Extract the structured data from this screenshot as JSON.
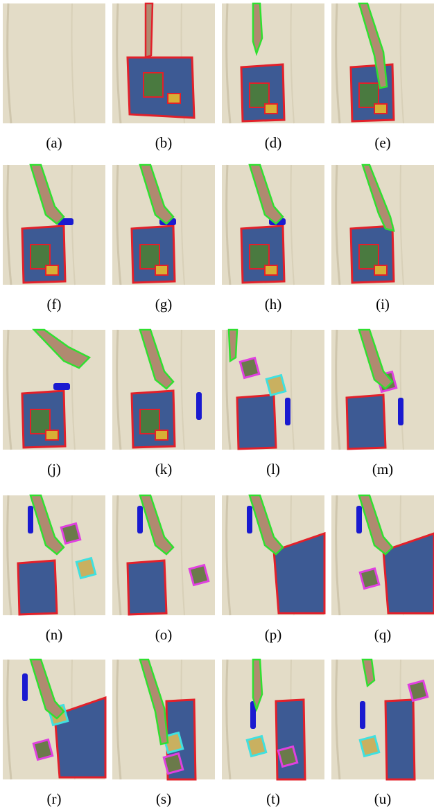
{
  "panels": [
    {
      "label": "(a)"
    },
    {
      "label": "(b)"
    },
    {
      "label": "(d)"
    },
    {
      "label": "(e)"
    },
    {
      "label": "(f)"
    },
    {
      "label": "(g)"
    },
    {
      "label": "(h)"
    },
    {
      "label": "(i)"
    },
    {
      "label": "(j)"
    },
    {
      "label": "(k)"
    },
    {
      "label": "(l)"
    },
    {
      "label": "(m)"
    },
    {
      "label": "(n)"
    },
    {
      "label": "(o)"
    },
    {
      "label": "(p)"
    },
    {
      "label": "(q)"
    },
    {
      "label": "(r)"
    },
    {
      "label": "(s)"
    },
    {
      "label": "(t)"
    },
    {
      "label": "(u)"
    }
  ]
}
